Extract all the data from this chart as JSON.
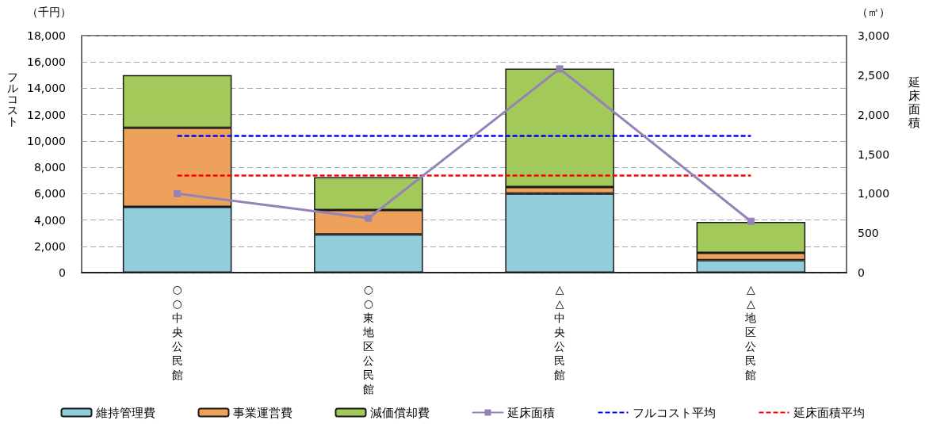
{
  "chart_data": {
    "type": "bar",
    "stacked": true,
    "categories": [
      "○○中央公民館",
      "○○東地区公民館",
      "△△中央公民館",
      "△△地区公民館"
    ],
    "ylabel": "フルコスト",
    "y2label": "延床面積",
    "annotations": [
      "（千円）",
      "（㎡）"
    ],
    "series": [
      {
        "name": "維持管理費",
        "color": "#92cddc",
        "values": [
          5000,
          2900,
          6000,
          950
        ]
      },
      {
        "name": "事業運営費",
        "color": "#eda15a",
        "values": [
          6000,
          1850,
          500,
          550
        ]
      },
      {
        "name": "減価償却費",
        "color": "#a2c95a",
        "values": [
          4000,
          2500,
          9000,
          2350
        ]
      },
      {
        "name": "延床面積",
        "type": "line",
        "axis": "y2",
        "color": "#9383b6",
        "values": [
          1000,
          690,
          2580,
          650
        ]
      }
    ],
    "marker": "square",
    "ylim": [
      0,
      18000
    ],
    "yticks": [
      0,
      {
        "value": 2000,
        "label": "2,000"
      },
      {
        "value": 4000,
        "label": "4,000"
      },
      {
        "value": 6000,
        "label": "6,000"
      },
      {
        "value": 8000,
        "label": "8,000"
      },
      {
        "value": 10000,
        "label": "10,000"
      },
      {
        "value": 12000,
        "label": "12,000"
      },
      {
        "value": 14000,
        "label": "14,000"
      },
      {
        "value": 16000,
        "label": "16,000"
      },
      {
        "value": 18000,
        "label": "18,000"
      }
    ],
    "y2lim": [
      0,
      3000
    ],
    "y2ticks": [
      0,
      500,
      {
        "value": 1000,
        "label": "1,000"
      },
      {
        "value": 1500,
        "label": "1,500"
      },
      {
        "value": 2000,
        "label": "2,000"
      },
      {
        "value": 2500,
        "label": "2,500"
      },
      {
        "value": 3000,
        "label": "3,000"
      }
    ],
    "ref_lines": [
      {
        "axis": "y",
        "value": 10400,
        "label": "フルコスト平均",
        "color": "#0000ff",
        "line_style": "dashed"
      },
      {
        "axis": "y2",
        "value": 1230,
        "label": "延床面積平均",
        "color": "#ff0000",
        "line_style": "dashed"
      }
    ],
    "grid": "y",
    "legend": "bottom"
  }
}
